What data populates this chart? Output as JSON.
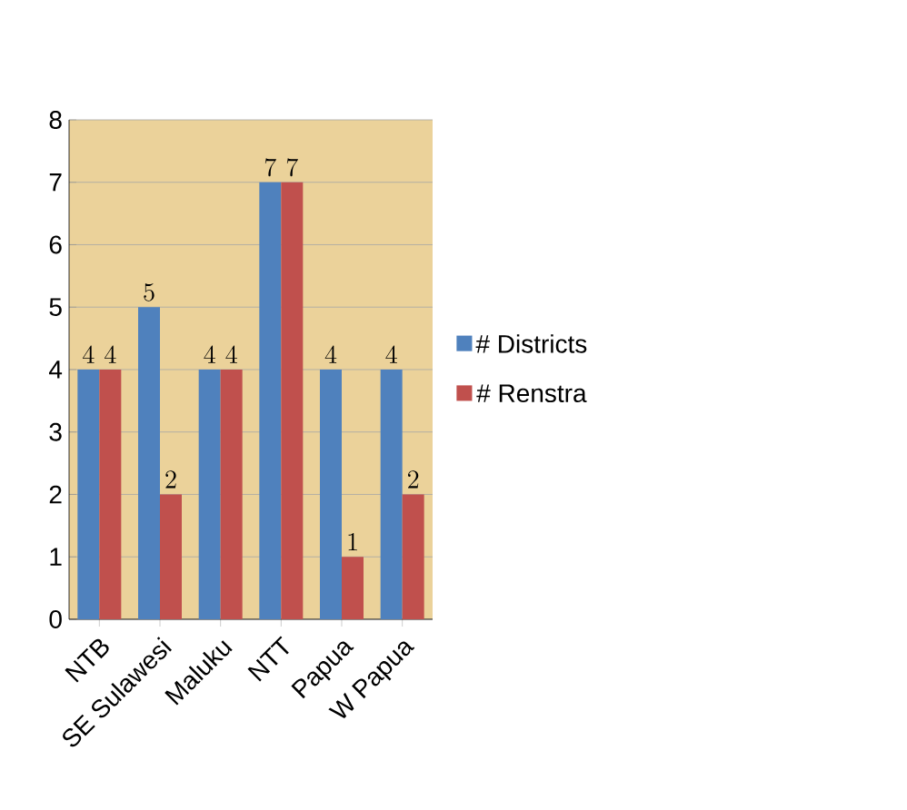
{
  "chart_data": {
    "type": "bar",
    "categories": [
      "NTB",
      "SE Sulawesi",
      "Maluku",
      "NTT",
      "Papua",
      "W Papua"
    ],
    "series": [
      {
        "name": "# Districts",
        "color": "#4f81bd",
        "values": [
          4,
          5,
          4,
          7,
          4,
          4
        ]
      },
      {
        "name": "# Renstra",
        "color": "#c0504d",
        "values": [
          4,
          2,
          4,
          7,
          1,
          2
        ]
      }
    ],
    "ylim": [
      0,
      8
    ],
    "yticks": [
      0,
      1,
      2,
      3,
      4,
      5,
      6,
      7,
      8
    ],
    "grid": "y",
    "legend": "right",
    "data_labels": true
  }
}
